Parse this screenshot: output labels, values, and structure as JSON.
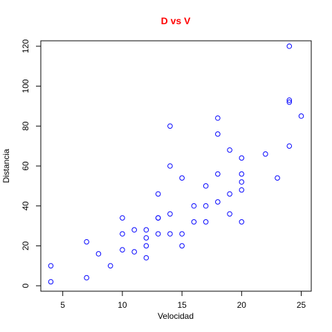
{
  "chart_data": {
    "type": "scatter",
    "title": "D vs V",
    "xlabel": "Velocidad",
    "ylabel": "Distancia",
    "xlim": [
      3.16,
      25.84
    ],
    "ylim": [
      -2.72,
      122.72
    ],
    "x_ticks": [
      5,
      10,
      15,
      20,
      25
    ],
    "y_ticks": [
      0,
      20,
      40,
      60,
      80,
      100,
      120
    ],
    "grid": false,
    "legend": "none",
    "marker": "open-circle",
    "colors": {
      "title": "#ff0000",
      "points": "#0000ff",
      "axes": "#000000"
    },
    "points": [
      {
        "x": 4,
        "y": 2
      },
      {
        "x": 4,
        "y": 10
      },
      {
        "x": 7,
        "y": 4
      },
      {
        "x": 7,
        "y": 22
      },
      {
        "x": 8,
        "y": 16
      },
      {
        "x": 9,
        "y": 10
      },
      {
        "x": 10,
        "y": 18
      },
      {
        "x": 10,
        "y": 26
      },
      {
        "x": 10,
        "y": 34
      },
      {
        "x": 11,
        "y": 17
      },
      {
        "x": 11,
        "y": 28
      },
      {
        "x": 12,
        "y": 14
      },
      {
        "x": 12,
        "y": 20
      },
      {
        "x": 12,
        "y": 24
      },
      {
        "x": 12,
        "y": 28
      },
      {
        "x": 13,
        "y": 26
      },
      {
        "x": 13,
        "y": 34
      },
      {
        "x": 13,
        "y": 34
      },
      {
        "x": 13,
        "y": 46
      },
      {
        "x": 14,
        "y": 26
      },
      {
        "x": 14,
        "y": 36
      },
      {
        "x": 14,
        "y": 60
      },
      {
        "x": 14,
        "y": 80
      },
      {
        "x": 15,
        "y": 20
      },
      {
        "x": 15,
        "y": 26
      },
      {
        "x": 15,
        "y": 54
      },
      {
        "x": 16,
        "y": 32
      },
      {
        "x": 16,
        "y": 40
      },
      {
        "x": 17,
        "y": 32
      },
      {
        "x": 17,
        "y": 40
      },
      {
        "x": 17,
        "y": 50
      },
      {
        "x": 18,
        "y": 42
      },
      {
        "x": 18,
        "y": 56
      },
      {
        "x": 18,
        "y": 76
      },
      {
        "x": 18,
        "y": 84
      },
      {
        "x": 19,
        "y": 36
      },
      {
        "x": 19,
        "y": 46
      },
      {
        "x": 19,
        "y": 68
      },
      {
        "x": 20,
        "y": 32
      },
      {
        "x": 20,
        "y": 48
      },
      {
        "x": 20,
        "y": 52
      },
      {
        "x": 20,
        "y": 56
      },
      {
        "x": 20,
        "y": 64
      },
      {
        "x": 22,
        "y": 66
      },
      {
        "x": 23,
        "y": 54
      },
      {
        "x": 24,
        "y": 70
      },
      {
        "x": 24,
        "y": 92
      },
      {
        "x": 24,
        "y": 93
      },
      {
        "x": 24,
        "y": 120
      },
      {
        "x": 25,
        "y": 85
      }
    ]
  }
}
